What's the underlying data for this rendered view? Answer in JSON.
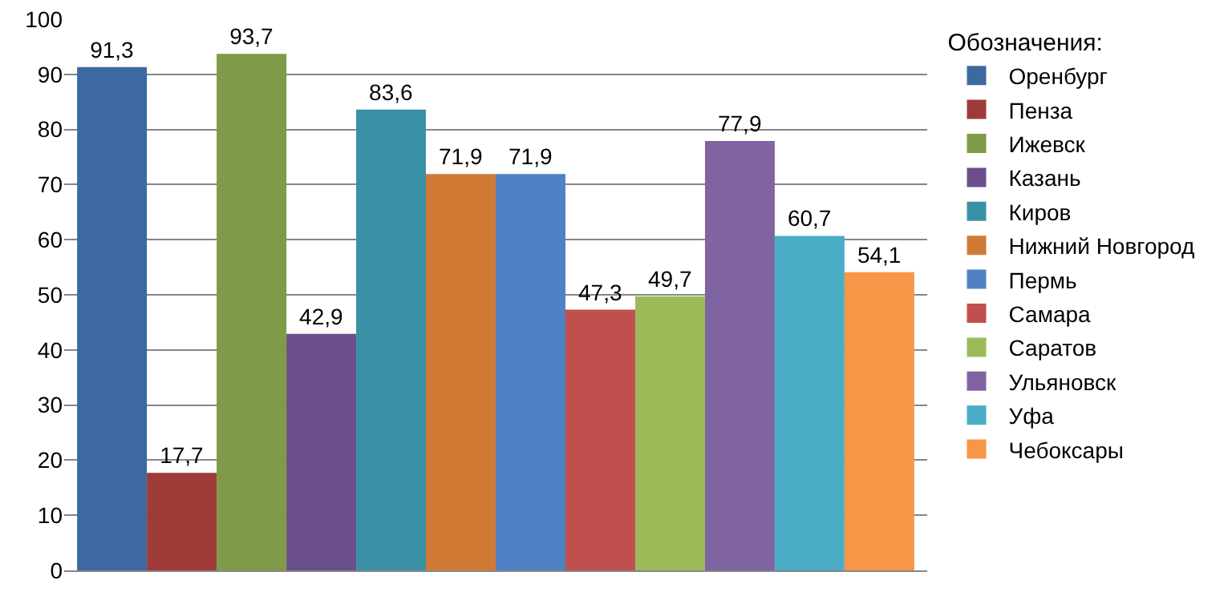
{
  "chart_data": {
    "type": "bar",
    "legend_title": "Обозначения:",
    "categories": [
      null
    ],
    "series": [
      {
        "name": "Оренбург",
        "color": "#3c6aa0",
        "values": [
          91.3
        ],
        "value_labels": [
          "91,3"
        ]
      },
      {
        "name": "Пенза",
        "color": "#9e3b39",
        "values": [
          17.7
        ],
        "value_labels": [
          "17,7"
        ]
      },
      {
        "name": "Ижевск",
        "color": "#7f9a48",
        "values": [
          93.7
        ],
        "value_labels": [
          "93,7"
        ]
      },
      {
        "name": "Казань",
        "color": "#6a4f8c",
        "values": [
          42.9
        ],
        "value_labels": [
          "42,9"
        ]
      },
      {
        "name": "Киров",
        "color": "#3a91a6",
        "values": [
          83.6
        ],
        "value_labels": [
          "83,6"
        ]
      },
      {
        "name": "Нижний Новгород",
        "color": "#d17a35",
        "values": [
          71.9
        ],
        "value_labels": [
          "71,9"
        ]
      },
      {
        "name": "Пермь",
        "color": "#4f81c4",
        "values": [
          71.9
        ],
        "value_labels": [
          "71,9"
        ]
      },
      {
        "name": "Самара",
        "color": "#c0504d",
        "values": [
          47.3
        ],
        "value_labels": [
          "47,3"
        ]
      },
      {
        "name": "Саратов",
        "color": "#9bbb59",
        "values": [
          49.7
        ],
        "value_labels": [
          "49,7"
        ]
      },
      {
        "name": "Ульяновск",
        "color": "#8064a2",
        "values": [
          77.9
        ],
        "value_labels": [
          "77,9"
        ]
      },
      {
        "name": "Уфа",
        "color": "#4bacc6",
        "values": [
          60.7
        ],
        "value_labels": [
          "60,7"
        ]
      },
      {
        "name": "Чебоксары",
        "color": "#f79646",
        "values": [
          54.1
        ],
        "value_labels": [
          "54,1"
        ]
      }
    ],
    "ylim": [
      0,
      100
    ],
    "yticks": [
      0,
      10,
      20,
      30,
      40,
      50,
      60,
      70,
      80,
      90,
      100
    ],
    "grid": "y",
    "legend": "right"
  }
}
